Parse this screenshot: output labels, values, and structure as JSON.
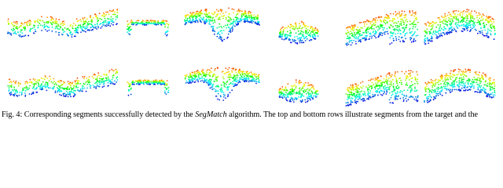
{
  "caption": {
    "label": "Fig. 4:",
    "text_before": "Corresponding segments successfully detected by the",
    "emphasis": "SegMatch",
    "text_after": "algorithm. The top and bottom rows illustrate segments from the target and the"
  }
}
